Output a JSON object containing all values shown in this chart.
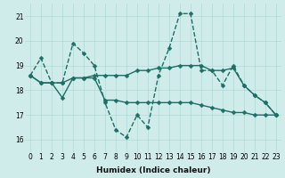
{
  "xlabel": "Humidex (Indice chaleur)",
  "background_color": "#cfecea",
  "grid_color": "#b2d8d5",
  "line_color": "#1e6e66",
  "x_values": [
    0,
    1,
    2,
    3,
    4,
    5,
    6,
    7,
    8,
    9,
    10,
    11,
    12,
    13,
    14,
    15,
    16,
    17,
    18,
    19,
    20,
    21,
    22,
    23
  ],
  "series1": [
    18.6,
    19.3,
    18.3,
    18.3,
    19.9,
    19.5,
    19.0,
    17.5,
    16.4,
    16.1,
    17.0,
    16.5,
    18.6,
    19.7,
    21.1,
    21.1,
    18.8,
    18.8,
    18.2,
    19.0,
    18.2,
    17.8,
    17.5,
    17.0
  ],
  "series2": [
    18.6,
    18.3,
    18.3,
    18.3,
    18.5,
    18.5,
    18.6,
    18.6,
    18.6,
    18.6,
    18.8,
    18.8,
    18.9,
    18.9,
    19.0,
    19.0,
    19.0,
    18.8,
    18.8,
    18.9,
    18.2,
    17.8,
    17.5,
    17.0
  ],
  "series3": [
    18.6,
    18.3,
    18.3,
    17.7,
    18.5,
    18.5,
    18.5,
    17.6,
    17.6,
    17.5,
    17.5,
    17.5,
    17.5,
    17.5,
    17.5,
    17.5,
    17.4,
    17.3,
    17.2,
    17.1,
    17.1,
    17.0,
    17.0,
    17.0
  ],
  "ylim": [
    15.5,
    21.5
  ],
  "yticks": [
    16,
    17,
    18,
    19,
    20,
    21
  ],
  "xticks": [
    0,
    1,
    2,
    3,
    4,
    5,
    6,
    7,
    8,
    9,
    10,
    11,
    12,
    13,
    14,
    15,
    16,
    17,
    18,
    19,
    20,
    21,
    22,
    23
  ],
  "markersize": 2.5,
  "linewidth": 1.0,
  "tick_fontsize": 5.5,
  "xlabel_fontsize": 6.5
}
